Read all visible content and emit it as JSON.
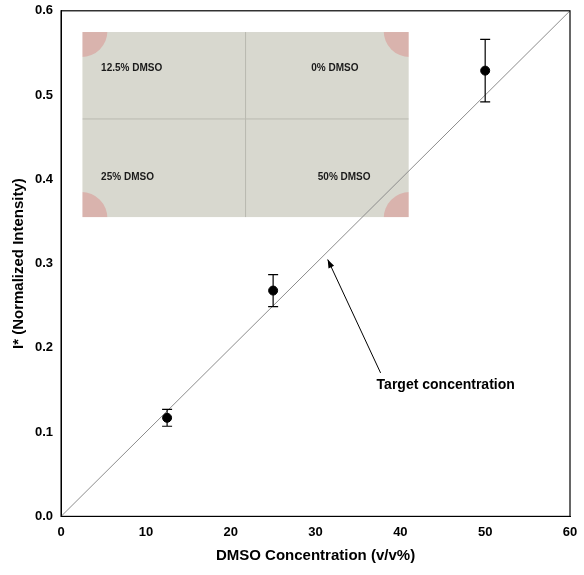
{
  "chart_data": {
    "type": "scatter",
    "x_label": "DMSO Concentration (v/v%)",
    "y_label": "I* (Normalized Intensity)",
    "series": [
      {
        "name": null,
        "type": "scatter",
        "color": "#000000",
        "marker": "circle",
        "x": [
          12.5,
          25,
          50
        ],
        "values": [
          0.117,
          0.268,
          0.529
        ],
        "errors": [
          0.01,
          0.019,
          0.037
        ]
      },
      {
        "name": "Target concentration",
        "type": "line",
        "color": "#8c8c8c",
        "line_style": "solid",
        "x": [
          0,
          60
        ],
        "values": [
          0,
          0.6
        ]
      }
    ],
    "annotations": [
      "12.5% DMSO",
      "0% DMSO",
      "25% DMSO",
      "50% DMSO"
    ],
    "xlim": [
      0,
      60
    ],
    "xticks": [
      0,
      10,
      20,
      30,
      40,
      50,
      60
    ],
    "ylim": [
      0,
      0.6
    ],
    "yticks": [
      {
        "value": 0,
        "label": "0.0"
      },
      0.1,
      0.2,
      0.3,
      0.4,
      0.5,
      0.6
    ],
    "grid": false
  }
}
